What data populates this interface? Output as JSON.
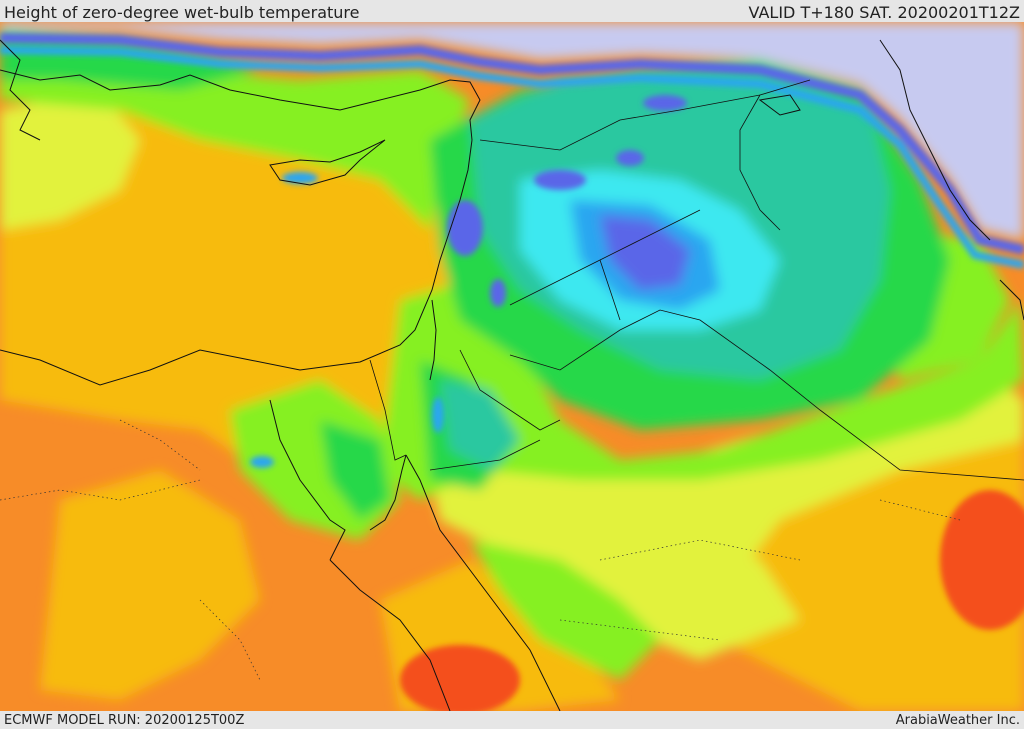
{
  "header": {
    "title": "Height of zero-degree wet-bulb temperature",
    "valid": "VALID T+180 SAT. 20200201T12Z"
  },
  "footer": {
    "model_run": "ECMWF MODEL RUN: 20200125T00Z",
    "credit": "ArabiaWeather Inc."
  },
  "map": {
    "palette": {
      "lowest": "#c7caf0",
      "very_low": "#5a66e8",
      "low": "#2aa6f0",
      "cyan": "#3ee8f0",
      "teal": "#2cc8a0",
      "green": "#26d84a",
      "lime": "#86f020",
      "yellow": "#e2f23c",
      "amber": "#f7bb10",
      "orange": "#f78c28",
      "red_orange": "#f4501a",
      "coast": "#111111"
    }
  }
}
